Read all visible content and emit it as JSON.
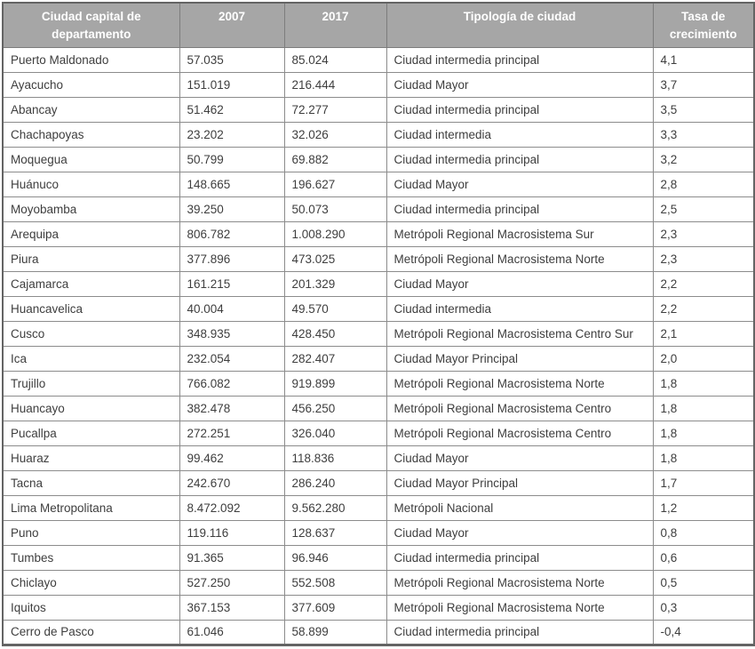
{
  "colors": {
    "header_bg": "#a6a6a6",
    "header_text": "#ffffff",
    "body_text": "#3e3e3e",
    "grid_border": "#8c8c8c",
    "outer_border": "#646464"
  },
  "chart_data": {
    "type": "table",
    "columns": [
      "Ciudad capital de departamento",
      "2007",
      "2017",
      "Tipología de ciudad",
      "Tasa de crecimiento"
    ],
    "rows": [
      [
        "Puerto Maldonado",
        "57.035",
        "85.024",
        "Ciudad intermedia principal",
        "4,1"
      ],
      [
        "Ayacucho",
        "151.019",
        "216.444",
        "Ciudad Mayor",
        "3,7"
      ],
      [
        "Abancay",
        "51.462",
        "72.277",
        "Ciudad intermedia principal",
        "3,5"
      ],
      [
        "Chachapoyas",
        "23.202",
        "32.026",
        "Ciudad intermedia",
        "3,3"
      ],
      [
        "Moquegua",
        "50.799",
        "69.882",
        "Ciudad intermedia principal",
        "3,2"
      ],
      [
        "Huánuco",
        "148.665",
        "196.627",
        "Ciudad Mayor",
        "2,8"
      ],
      [
        "Moyobamba",
        "39.250",
        "50.073",
        "Ciudad intermedia principal",
        "2,5"
      ],
      [
        "Arequipa",
        "806.782",
        "1.008.290",
        "Metrópoli Regional Macrosistema Sur",
        "2,3"
      ],
      [
        "Piura",
        "377.896",
        "473.025",
        "Metrópoli Regional Macrosistema Norte",
        "2,3"
      ],
      [
        "Cajamarca",
        "161.215",
        "201.329",
        "Ciudad Mayor",
        "2,2"
      ],
      [
        "Huancavelica",
        "40.004",
        "49.570",
        "Ciudad intermedia",
        "2,2"
      ],
      [
        "Cusco",
        "348.935",
        "428.450",
        "Metrópoli Regional Macrosistema Centro Sur",
        "2,1"
      ],
      [
        "Ica",
        "232.054",
        "282.407",
        "Ciudad Mayor Principal",
        "2,0"
      ],
      [
        "Trujillo",
        "766.082",
        "919.899",
        "Metrópoli Regional Macrosistema Norte",
        "1,8"
      ],
      [
        "Huancayo",
        "382.478",
        "456.250",
        "Metrópoli Regional Macrosistema Centro",
        "1,8"
      ],
      [
        "Pucallpa",
        "272.251",
        "326.040",
        "Metrópoli Regional Macrosistema Centro",
        "1,8"
      ],
      [
        "Huaraz",
        "99.462",
        "118.836",
        "Ciudad Mayor",
        "1,8"
      ],
      [
        "Tacna",
        "242.670",
        "286.240",
        "Ciudad Mayor Principal",
        "1,7"
      ],
      [
        "Lima Metropolitana",
        "8.472.092",
        "9.562.280",
        "Metrópoli Nacional",
        "1,2"
      ],
      [
        "Puno",
        "119.116",
        "128.637",
        "Ciudad Mayor",
        "0,8"
      ],
      [
        "Tumbes",
        "91.365",
        "96.946",
        "Ciudad intermedia principal",
        "0,6"
      ],
      [
        "Chiclayo",
        "527.250",
        "552.508",
        "Metrópoli Regional Macrosistema Norte",
        "0,5"
      ],
      [
        "Iquitos",
        "367.153",
        "377.609",
        "Metrópoli Regional Macrosistema Norte",
        "0,3"
      ],
      [
        "Cerro de Pasco",
        "61.046",
        "58.899",
        "Ciudad intermedia principal",
        "-0,4"
      ]
    ]
  }
}
